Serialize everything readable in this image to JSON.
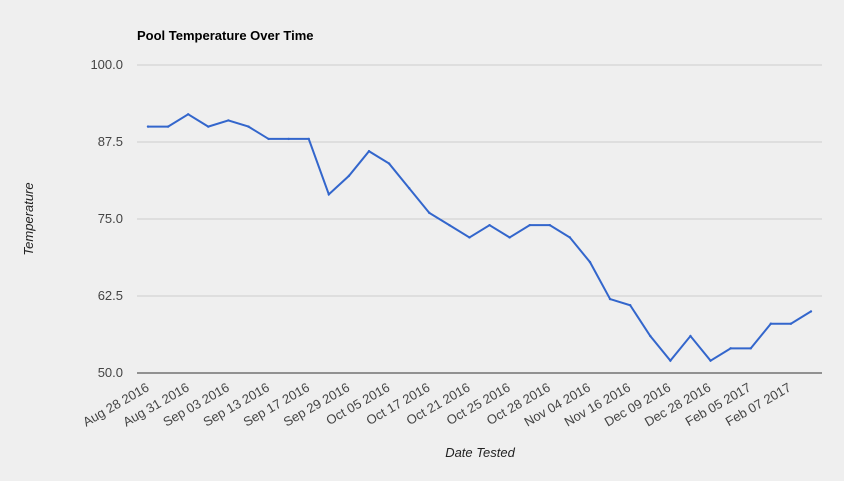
{
  "chart_data": {
    "type": "line",
    "title": "Pool Temperature Over Time",
    "xlabel": "Date Tested",
    "ylabel": "Temperature",
    "ylim": [
      50,
      100
    ],
    "y_ticks": [
      "100.0",
      "87.5",
      "75.0",
      "62.5",
      "50.0"
    ],
    "y_tick_values": [
      100,
      87.5,
      75,
      62.5,
      50
    ],
    "x_tick_labels": [
      "Aug 28 2016",
      "Aug 31 2016",
      "Sep 03 2016",
      "Sep 13 2016",
      "Sep 17 2016",
      "Sep 29 2016",
      "Oct 05 2016",
      "Oct 17 2016",
      "Oct 21 2016",
      "Oct 25 2016",
      "Oct 28 2016",
      "Nov 04 2016",
      "Nov 16 2016",
      "Dec 09 2016",
      "Dec 28 2016",
      "Feb 05 2017",
      "Feb 07 2017"
    ],
    "grid": true,
    "legend": "none",
    "series": [
      {
        "color": "#3366cc",
        "values": [
          90,
          90,
          92,
          90,
          91,
          90,
          88,
          88,
          88,
          79,
          82,
          86,
          84,
          80,
          76,
          74,
          72,
          74,
          72,
          74,
          74,
          72,
          68,
          62,
          61,
          56,
          52,
          56,
          52,
          54,
          54,
          58,
          58,
          60
        ]
      }
    ]
  }
}
